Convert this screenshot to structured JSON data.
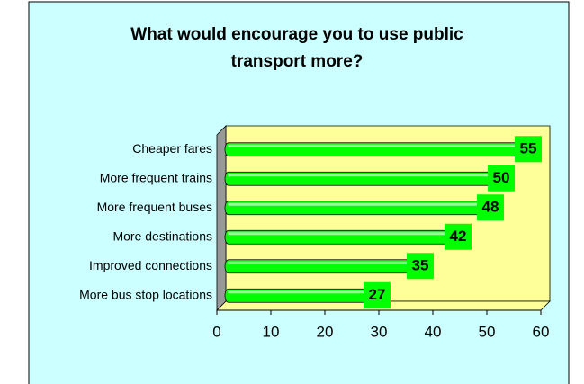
{
  "chart_data": {
    "type": "bar",
    "orientation": "horizontal",
    "title": "What would encourage you to use public transport more?",
    "categories": [
      "Cheaper fares",
      "More frequent trains",
      "More frequent buses",
      "More destinations",
      "Improved connections",
      "More bus stop locations"
    ],
    "values": [
      55,
      50,
      48,
      42,
      35,
      27
    ],
    "color": "#00ff00",
    "xlim": [
      0,
      60
    ],
    "xticks": [
      0,
      10,
      20,
      30,
      40,
      50,
      60
    ]
  }
}
